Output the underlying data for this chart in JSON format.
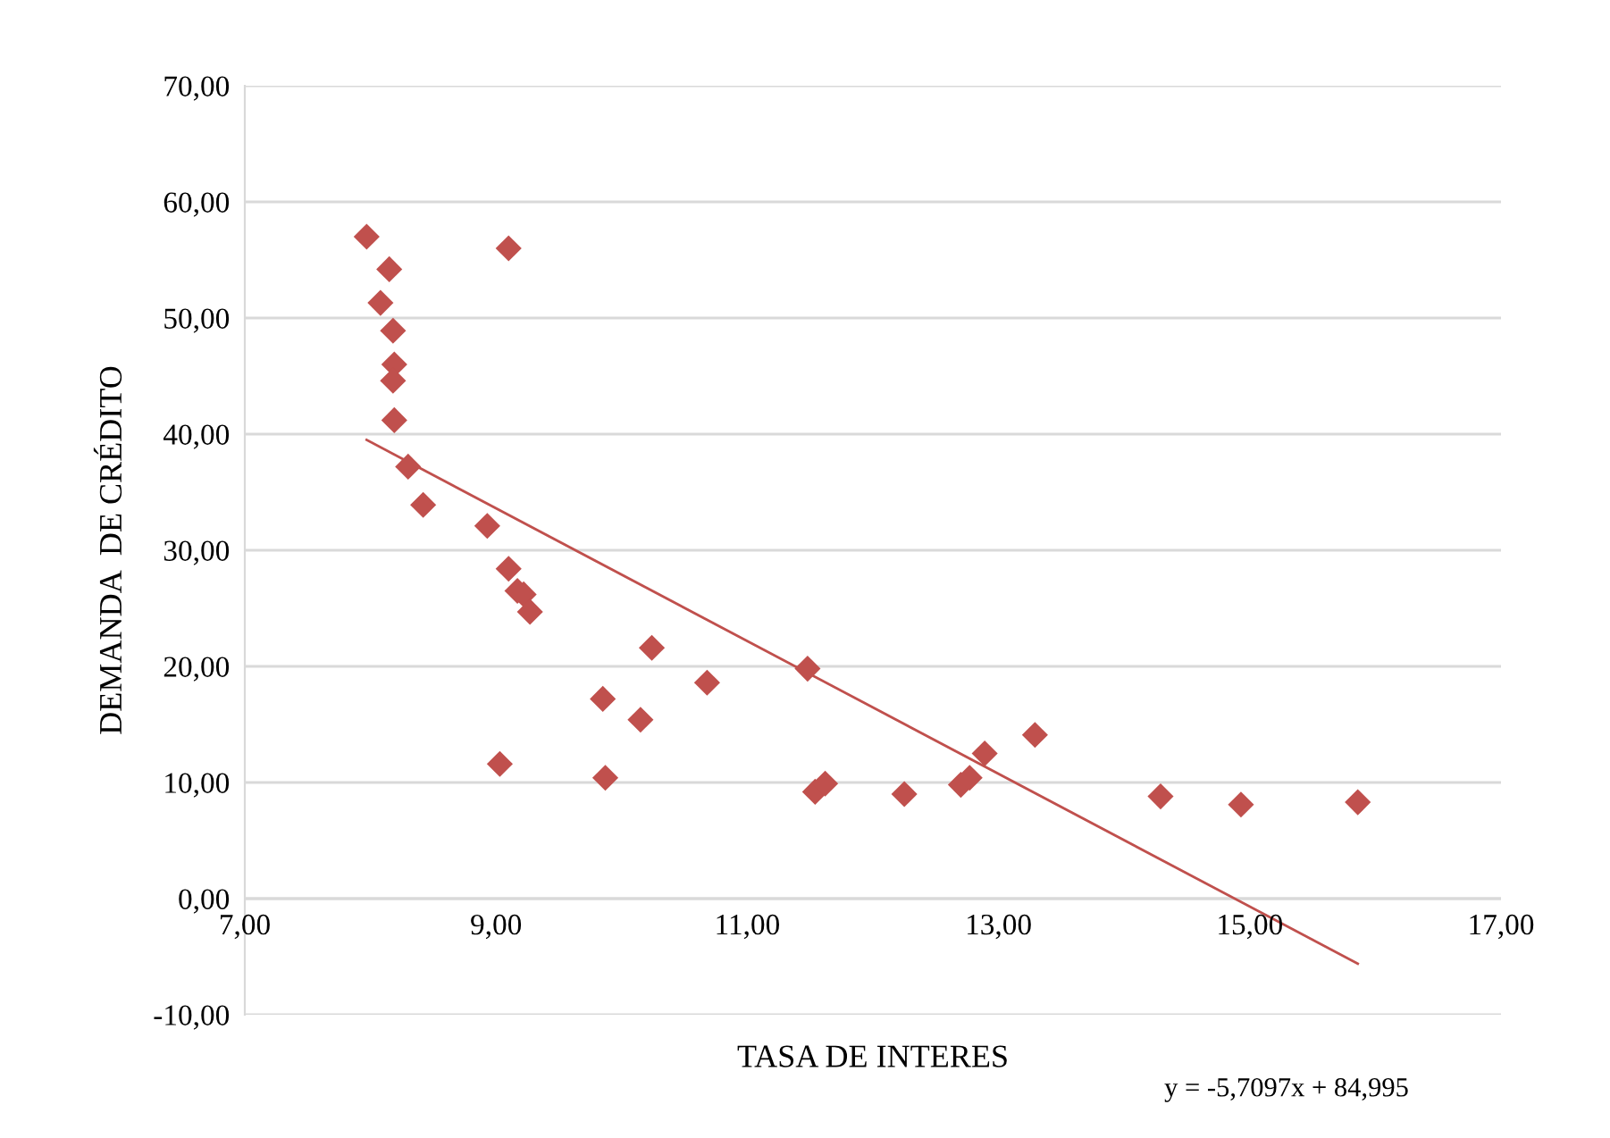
{
  "chart_data": {
    "type": "scatter",
    "xlabel": "TASA DE INTERES",
    "ylabel": "DEMANDA  DE CRÉDITO",
    "xlim": [
      7,
      17
    ],
    "xticks": [
      {
        "value": 7,
        "label": "7,00"
      },
      {
        "value": 9,
        "label": "9,00"
      },
      {
        "value": 11,
        "label": "11,00"
      },
      {
        "value": 13,
        "label": "13,00"
      },
      {
        "value": 15,
        "label": "15,00"
      },
      {
        "value": 17,
        "label": "17,00"
      }
    ],
    "ylim": [
      -10,
      70
    ],
    "yticks": [
      {
        "value": -10,
        "label": "-10,00"
      },
      {
        "value": 0,
        "label": "0,00"
      },
      {
        "value": 10,
        "label": "10,00"
      },
      {
        "value": 20,
        "label": "20,00"
      },
      {
        "value": 30,
        "label": "30,00"
      },
      {
        "value": 40,
        "label": "40,00"
      },
      {
        "value": 50,
        "label": "50,00"
      },
      {
        "value": 60,
        "label": "60,00"
      },
      {
        "value": 70,
        "label": "70,00"
      }
    ],
    "grid": "y",
    "legend": false,
    "series": [
      {
        "marker": "diamond",
        "color": "#c0504d",
        "x": [
          7.97,
          8.15,
          8.08,
          8.18,
          8.19,
          8.18,
          8.19,
          8.3,
          8.42,
          8.93,
          9.1,
          9.1,
          9.17,
          9.22,
          9.27,
          9.03,
          9.85,
          9.87,
          10.15,
          10.24,
          10.68,
          11.48,
          11.54,
          11.62,
          12.25,
          12.7,
          12.77,
          12.89,
          13.29,
          14.29,
          14.93,
          15.86
        ],
        "values": [
          57.0,
          54.2,
          51.3,
          48.9,
          46.0,
          44.6,
          41.2,
          37.2,
          33.9,
          32.1,
          56.0,
          28.4,
          26.5,
          26.2,
          24.7,
          11.6,
          17.2,
          10.4,
          15.4,
          21.6,
          18.6,
          19.8,
          9.2,
          9.9,
          9.0,
          9.8,
          10.4,
          12.5,
          14.1,
          8.8,
          8.1,
          8.3
        ]
      },
      {
        "type": "line",
        "marker": "none",
        "line_style": "solid",
        "color": "#c0504d",
        "x": [
          7.97,
          15.86
        ],
        "values": [
          39.5,
          -5.6
        ]
      }
    ],
    "annotations": [
      {
        "text": "y = -5,7097x + 84,995"
      }
    ]
  }
}
